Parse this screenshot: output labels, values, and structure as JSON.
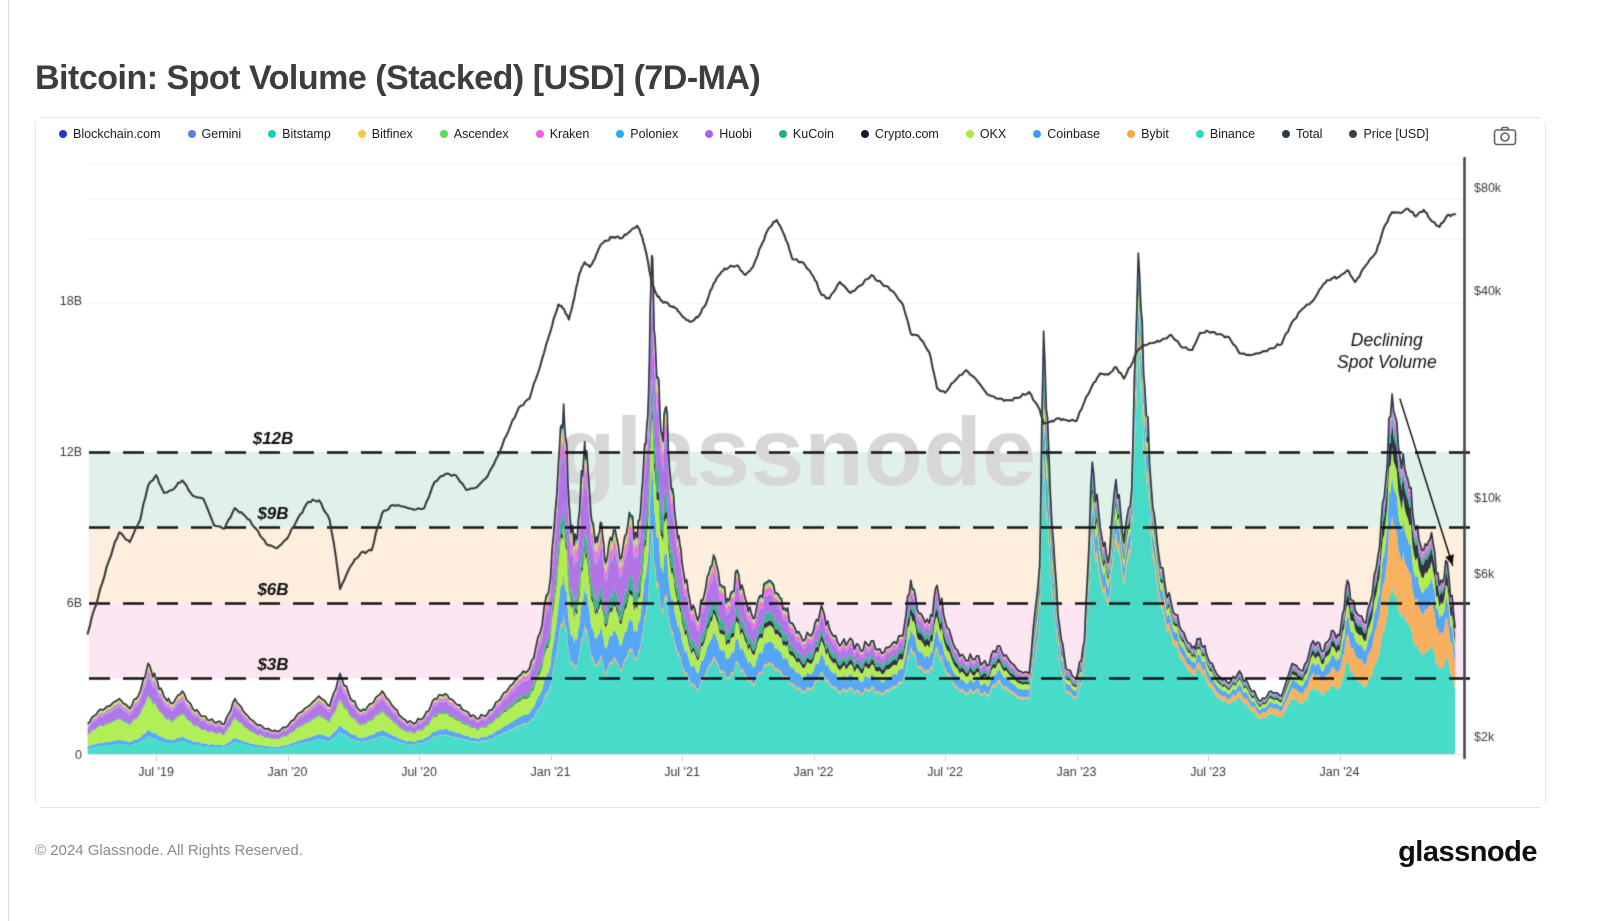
{
  "page": {
    "title": "Bitcoin: Spot Volume (Stacked) [USD] (7D-MA)",
    "footer_left": "© 2024 Glassnode. All Rights Reserved.",
    "footer_logo": "glassnode",
    "watermark": "glassnode"
  },
  "legend": {
    "items": [
      {
        "label": "Blockchain.com",
        "color": "#2237c5"
      },
      {
        "label": "Gemini",
        "color": "#5b7fe8"
      },
      {
        "label": "Bitstamp",
        "color": "#17cfb3"
      },
      {
        "label": "Bitfinex",
        "color": "#f7c843"
      },
      {
        "label": "Ascendex",
        "color": "#53e057"
      },
      {
        "label": "Kraken",
        "color": "#f25ee4"
      },
      {
        "label": "Poloniex",
        "color": "#25aef2"
      },
      {
        "label": "Huobi",
        "color": "#a863e6"
      },
      {
        "label": "KuCoin",
        "color": "#27ab87"
      },
      {
        "label": "Crypto.com",
        "color": "#16192e"
      },
      {
        "label": "OKX",
        "color": "#a7ec3f"
      },
      {
        "label": "Coinbase",
        "color": "#3d9df6"
      },
      {
        "label": "Bybit",
        "color": "#f7a84b"
      },
      {
        "label": "Binance",
        "color": "#2ed8c3"
      },
      {
        "label": "Total",
        "color": "#2e3a46"
      },
      {
        "label": "Price [USD]",
        "color": "#3c4046"
      }
    ]
  },
  "chart_data": {
    "type": "area",
    "subtype": "stacked-area-with-price-line",
    "title": "Bitcoin: Spot Volume (Stacked) [USD] (7D-MA)",
    "x_axis": {
      "range": [
        2019.24,
        2024.44
      ],
      "ticks": [
        {
          "t": 2019.5,
          "label": "Jul '19"
        },
        {
          "t": 2020.0,
          "label": "Jan '20"
        },
        {
          "t": 2020.5,
          "label": "Jul '20"
        },
        {
          "t": 2021.0,
          "label": "Jan '21"
        },
        {
          "t": 2021.5,
          "label": "Jul '21"
        },
        {
          "t": 2022.0,
          "label": "Jan '22"
        },
        {
          "t": 2022.5,
          "label": "Jul '22"
        },
        {
          "t": 2023.0,
          "label": "Jan '23"
        },
        {
          "t": 2023.5,
          "label": "Jul '23"
        },
        {
          "t": 2024.0,
          "label": "Jan '24"
        }
      ]
    },
    "y_axis_left": {
      "unit": "billions USD",
      "scale": "linear",
      "range_b": [
        0,
        23.5
      ],
      "ticks": [
        {
          "v": 0,
          "label": "0"
        },
        {
          "v": 6,
          "label": "6B"
        },
        {
          "v": 12,
          "label": "12B"
        },
        {
          "v": 18,
          "label": "18B"
        }
      ]
    },
    "y_axis_right": {
      "unit": "USD",
      "scale": "log",
      "ticks": [
        {
          "v": 2000,
          "label": "$2k"
        },
        {
          "v": 6000,
          "label": "$6k"
        },
        {
          "v": 10000,
          "label": "$10k"
        },
        {
          "v": 40000,
          "label": "$40k"
        },
        {
          "v": 80000,
          "label": "$80k"
        }
      ]
    },
    "reference_lines": [
      {
        "v": 3,
        "label": "$3B"
      },
      {
        "v": 6,
        "label": "$6B"
      },
      {
        "v": 9,
        "label": "$9B"
      },
      {
        "v": 12,
        "label": "$12B"
      }
    ],
    "bands": [
      {
        "from_b": 3,
        "to_b": 6,
        "color": "#fce6f1"
      },
      {
        "from_b": 6,
        "to_b": 9,
        "color": "#fdeedd"
      },
      {
        "from_b": 9,
        "to_b": 12,
        "color": "#e0f1e9"
      }
    ],
    "annotation": {
      "text_lines": [
        "Declining",
        "Spot Volume"
      ],
      "anchor": {
        "t": 2024.18,
        "v_b": 16.2
      },
      "arrow": {
        "from": {
          "t": 2024.23,
          "v_b": 14.1
        },
        "to": {
          "t": 2024.43,
          "v_b": 7.5
        }
      }
    },
    "total_line": {
      "name": "Total",
      "color": "#2e3a46"
    },
    "price_line": {
      "name": "Price [USD]",
      "color": "#3b3b3b"
    },
    "stack_order_note": "series listed bottom-to-top of the stack",
    "share_times": [
      2019.24,
      2019.75,
      2020.3,
      2020.8,
      2021.1,
      2021.4,
      2021.9,
      2022.4,
      2022.87,
      2023.23,
      2023.6,
      2024.0,
      2024.2,
      2024.44
    ],
    "series": [
      {
        "name": "Binance",
        "color": "#2ed8c3",
        "shares": [
          0.18,
          0.22,
          0.28,
          0.34,
          0.4,
          0.44,
          0.52,
          0.6,
          0.68,
          0.82,
          0.7,
          0.55,
          0.47,
          0.52
        ]
      },
      {
        "name": "Bybit",
        "color": "#f7a84b",
        "shares": [
          0.0,
          0.0,
          0.005,
          0.01,
          0.01,
          0.012,
          0.015,
          0.02,
          0.03,
          0.03,
          0.07,
          0.15,
          0.2,
          0.21
        ]
      },
      {
        "name": "Coinbase",
        "color": "#3d9df6",
        "shares": [
          0.07,
          0.07,
          0.09,
          0.1,
          0.12,
          0.12,
          0.12,
          0.1,
          0.09,
          0.05,
          0.08,
          0.1,
          0.11,
          0.1
        ]
      },
      {
        "name": "OKX",
        "color": "#a7ec3f",
        "shares": [
          0.38,
          0.36,
          0.3,
          0.24,
          0.12,
          0.1,
          0.09,
          0.08,
          0.06,
          0.035,
          0.06,
          0.07,
          0.08,
          0.07
        ]
      },
      {
        "name": "Crypto.com",
        "color": "#16192e",
        "shares": [
          0.0,
          0.0,
          0.005,
          0.01,
          0.015,
          0.02,
          0.03,
          0.05,
          0.03,
          0.015,
          0.025,
          0.05,
          0.07,
          0.06
        ]
      },
      {
        "name": "KuCoin",
        "color": "#27ab87",
        "shares": [
          0.02,
          0.02,
          0.02,
          0.03,
          0.05,
          0.06,
          0.05,
          0.04,
          0.035,
          0.02,
          0.025,
          0.025,
          0.025,
          0.02
        ]
      },
      {
        "name": "Huobi",
        "color": "#a863e6",
        "shares": [
          0.2,
          0.2,
          0.18,
          0.16,
          0.17,
          0.15,
          0.09,
          0.045,
          0.03,
          0.012,
          0.015,
          0.02,
          0.02,
          0.015
        ]
      },
      {
        "name": "Poloniex",
        "color": "#25aef2",
        "shares": [
          0.02,
          0.015,
          0.01,
          0.01,
          0.01,
          0.008,
          0.005,
          0.003,
          0.002,
          0.001,
          0.002,
          0.002,
          0.002,
          0.002
        ]
      },
      {
        "name": "Kraken",
        "color": "#f25ee4",
        "shares": [
          0.05,
          0.05,
          0.05,
          0.05,
          0.045,
          0.04,
          0.035,
          0.025,
          0.02,
          0.012,
          0.015,
          0.02,
          0.02,
          0.015
        ]
      },
      {
        "name": "Ascendex",
        "color": "#53e057",
        "shares": [
          0.02,
          0.02,
          0.015,
          0.01,
          0.01,
          0.008,
          0.006,
          0.004,
          0.003,
          0.002,
          0.002,
          0.002,
          0.002,
          0.002
        ]
      },
      {
        "name": "Bitfinex",
        "color": "#f7c843",
        "shares": [
          0.04,
          0.04,
          0.03,
          0.025,
          0.025,
          0.02,
          0.015,
          0.01,
          0.008,
          0.005,
          0.005,
          0.005,
          0.004,
          0.004
        ]
      },
      {
        "name": "Bitstamp",
        "color": "#17cfb3",
        "shares": [
          0.01,
          0.01,
          0.01,
          0.01,
          0.012,
          0.01,
          0.008,
          0.007,
          0.006,
          0.004,
          0.004,
          0.004,
          0.003,
          0.003
        ]
      },
      {
        "name": "Gemini",
        "color": "#5b7fe8",
        "shares": [
          0.005,
          0.005,
          0.005,
          0.007,
          0.008,
          0.007,
          0.006,
          0.005,
          0.004,
          0.003,
          0.003,
          0.002,
          0.002,
          0.002
        ]
      },
      {
        "name": "Blockchain.com",
        "color": "#2237c5",
        "shares": [
          0.005,
          0.005,
          0.005,
          0.003,
          0.002,
          0.002,
          0.002,
          0.001,
          0.001,
          0.001,
          0.001,
          0.001,
          0.001,
          0.001
        ]
      }
    ],
    "samples_format": [
      "t_decimal_year",
      "total_spot_volume_billions_usd",
      "btc_price_thousands_usd"
    ],
    "samples": [
      [
        2019.24,
        1.2,
        4.0
      ],
      [
        2019.28,
        1.7,
        5.1
      ],
      [
        2019.32,
        1.9,
        6.5
      ],
      [
        2019.36,
        2.2,
        7.9
      ],
      [
        2019.4,
        1.8,
        7.4
      ],
      [
        2019.44,
        2.5,
        8.6
      ],
      [
        2019.47,
        3.6,
        10.8
      ],
      [
        2019.5,
        3.0,
        11.6
      ],
      [
        2019.53,
        2.3,
        10.3
      ],
      [
        2019.56,
        2.0,
        10.5
      ],
      [
        2019.6,
        2.5,
        11.2
      ],
      [
        2019.64,
        1.8,
        10.1
      ],
      [
        2019.68,
        1.5,
        9.9
      ],
      [
        2019.72,
        1.3,
        8.3
      ],
      [
        2019.76,
        1.2,
        8.1
      ],
      [
        2019.8,
        2.2,
        9.3
      ],
      [
        2019.84,
        1.6,
        8.8
      ],
      [
        2019.88,
        1.2,
        8.1
      ],
      [
        2019.92,
        1.0,
        7.3
      ],
      [
        2019.96,
        0.9,
        7.1
      ],
      [
        2020.0,
        1.1,
        7.6
      ],
      [
        2020.04,
        1.6,
        8.7
      ],
      [
        2020.08,
        1.9,
        9.7
      ],
      [
        2020.12,
        2.3,
        9.8
      ],
      [
        2020.16,
        1.9,
        8.6
      ],
      [
        2020.2,
        3.2,
        5.4
      ],
      [
        2020.24,
        2.2,
        6.3
      ],
      [
        2020.28,
        1.7,
        6.9
      ],
      [
        2020.32,
        2.0,
        7.0
      ],
      [
        2020.36,
        2.5,
        9.0
      ],
      [
        2020.4,
        1.9,
        9.5
      ],
      [
        2020.44,
        1.4,
        9.4
      ],
      [
        2020.48,
        1.2,
        9.2
      ],
      [
        2020.52,
        1.5,
        9.3
      ],
      [
        2020.56,
        2.2,
        11.1
      ],
      [
        2020.6,
        2.4,
        11.7
      ],
      [
        2020.64,
        2.0,
        11.6
      ],
      [
        2020.68,
        1.7,
        10.5
      ],
      [
        2020.72,
        1.4,
        10.7
      ],
      [
        2020.76,
        1.6,
        11.5
      ],
      [
        2020.8,
        2.1,
        13.2
      ],
      [
        2020.84,
        2.6,
        15.6
      ],
      [
        2020.88,
        3.1,
        18.3
      ],
      [
        2020.92,
        3.4,
        19.4
      ],
      [
        2020.96,
        4.8,
        24.0
      ],
      [
        2021.0,
        7.0,
        30.5
      ],
      [
        2021.03,
        11.5,
        36.5
      ],
      [
        2021.05,
        13.9,
        35.5
      ],
      [
        2021.07,
        10.0,
        33.0
      ],
      [
        2021.09,
        8.3,
        38.0
      ],
      [
        2021.11,
        9.6,
        45.0
      ],
      [
        2021.13,
        12.4,
        48.5
      ],
      [
        2021.15,
        10.2,
        47.0
      ],
      [
        2021.17,
        8.4,
        50.0
      ],
      [
        2021.19,
        9.2,
        54.5
      ],
      [
        2021.21,
        7.6,
        56.0
      ],
      [
        2021.24,
        8.9,
        57.5
      ],
      [
        2021.27,
        7.8,
        57.0
      ],
      [
        2021.3,
        9.6,
        59.5
      ],
      [
        2021.33,
        8.6,
        62.0
      ],
      [
        2021.35,
        10.8,
        57.0
      ],
      [
        2021.37,
        13.5,
        49.0
      ],
      [
        2021.385,
        19.8,
        42.0
      ],
      [
        2021.4,
        16.0,
        39.5
      ],
      [
        2021.42,
        12.8,
        37.5
      ],
      [
        2021.44,
        13.8,
        37.0
      ],
      [
        2021.46,
        10.5,
        36.0
      ],
      [
        2021.48,
        9.0,
        35.5
      ],
      [
        2021.5,
        7.6,
        33.8
      ],
      [
        2021.53,
        6.1,
        32.5
      ],
      [
        2021.56,
        5.3,
        33.5
      ],
      [
        2021.59,
        6.6,
        36.5
      ],
      [
        2021.62,
        7.9,
        42.0
      ],
      [
        2021.65,
        6.7,
        45.5
      ],
      [
        2021.68,
        6.1,
        47.0
      ],
      [
        2021.71,
        7.3,
        47.5
      ],
      [
        2021.74,
        6.2,
        44.5
      ],
      [
        2021.77,
        5.4,
        47.0
      ],
      [
        2021.8,
        6.3,
        54.0
      ],
      [
        2021.83,
        6.9,
        61.0
      ],
      [
        2021.86,
        6.4,
        64.5
      ],
      [
        2021.89,
        5.8,
        58.0
      ],
      [
        2021.92,
        5.2,
        49.5
      ],
      [
        2021.96,
        4.5,
        48.5
      ],
      [
        2022.0,
        4.9,
        44.0
      ],
      [
        2022.03,
        5.9,
        39.0
      ],
      [
        2022.06,
        5.0,
        38.0
      ],
      [
        2022.1,
        4.3,
        42.5
      ],
      [
        2022.14,
        4.6,
        39.5
      ],
      [
        2022.18,
        4.1,
        41.5
      ],
      [
        2022.22,
        4.5,
        44.5
      ],
      [
        2022.26,
        4.0,
        42.0
      ],
      [
        2022.3,
        4.4,
        40.0
      ],
      [
        2022.34,
        4.7,
        36.5
      ],
      [
        2022.37,
        6.9,
        30.0
      ],
      [
        2022.4,
        5.6,
        29.5
      ],
      [
        2022.44,
        5.2,
        26.5
      ],
      [
        2022.47,
        6.7,
        20.8
      ],
      [
        2022.5,
        5.3,
        20.2
      ],
      [
        2022.54,
        4.2,
        22.0
      ],
      [
        2022.58,
        3.7,
        23.5
      ],
      [
        2022.62,
        3.9,
        22.0
      ],
      [
        2022.66,
        3.5,
        20.0
      ],
      [
        2022.7,
        4.3,
        19.4
      ],
      [
        2022.74,
        3.8,
        19.2
      ],
      [
        2022.78,
        3.3,
        19.5
      ],
      [
        2022.82,
        3.2,
        20.3
      ],
      [
        2022.86,
        7.5,
        18.0
      ],
      [
        2022.875,
        16.8,
        16.4
      ],
      [
        2022.9,
        10.5,
        16.6
      ],
      [
        2022.93,
        5.5,
        17.0
      ],
      [
        2022.96,
        3.4,
        16.8
      ],
      [
        2023.0,
        3.0,
        16.7
      ],
      [
        2023.03,
        4.5,
        19.0
      ],
      [
        2023.06,
        11.6,
        21.2
      ],
      [
        2023.09,
        9.0,
        23.0
      ],
      [
        2023.12,
        7.6,
        22.8
      ],
      [
        2023.15,
        10.9,
        24.0
      ],
      [
        2023.18,
        8.4,
        22.2
      ],
      [
        2023.21,
        10.5,
        24.5
      ],
      [
        2023.235,
        19.9,
        27.0
      ],
      [
        2023.26,
        14.5,
        27.8
      ],
      [
        2023.29,
        9.8,
        28.2
      ],
      [
        2023.32,
        7.4,
        28.6
      ],
      [
        2023.36,
        6.0,
        29.8
      ],
      [
        2023.4,
        4.9,
        27.4
      ],
      [
        2023.44,
        4.2,
        26.9
      ],
      [
        2023.47,
        4.6,
        30.2
      ],
      [
        2023.5,
        3.8,
        30.5
      ],
      [
        2023.54,
        3.1,
        29.9
      ],
      [
        2023.58,
        2.8,
        29.3
      ],
      [
        2023.62,
        3.3,
        26.3
      ],
      [
        2023.66,
        2.6,
        26.0
      ],
      [
        2023.7,
        2.1,
        26.4
      ],
      [
        2023.74,
        2.5,
        27.2
      ],
      [
        2023.78,
        2.3,
        28.0
      ],
      [
        2023.82,
        3.6,
        32.5
      ],
      [
        2023.86,
        3.3,
        35.5
      ],
      [
        2023.9,
        4.5,
        37.5
      ],
      [
        2023.94,
        4.1,
        42.0
      ],
      [
        2023.97,
        4.9,
        43.5
      ],
      [
        2024.0,
        4.7,
        44.0
      ],
      [
        2024.03,
        6.9,
        46.0
      ],
      [
        2024.06,
        5.7,
        42.5
      ],
      [
        2024.1,
        5.2,
        47.5
      ],
      [
        2024.14,
        7.4,
        52.0
      ],
      [
        2024.17,
        10.2,
        61.5
      ],
      [
        2024.2,
        14.3,
        68.0
      ],
      [
        2024.23,
        11.8,
        67.5
      ],
      [
        2024.26,
        10.9,
        69.5
      ],
      [
        2024.29,
        8.9,
        66.0
      ],
      [
        2024.32,
        8.1,
        69.0
      ],
      [
        2024.35,
        8.8,
        64.0
      ],
      [
        2024.38,
        6.7,
        61.5
      ],
      [
        2024.41,
        7.6,
        66.5
      ],
      [
        2024.44,
        5.0,
        67.0
      ]
    ]
  }
}
